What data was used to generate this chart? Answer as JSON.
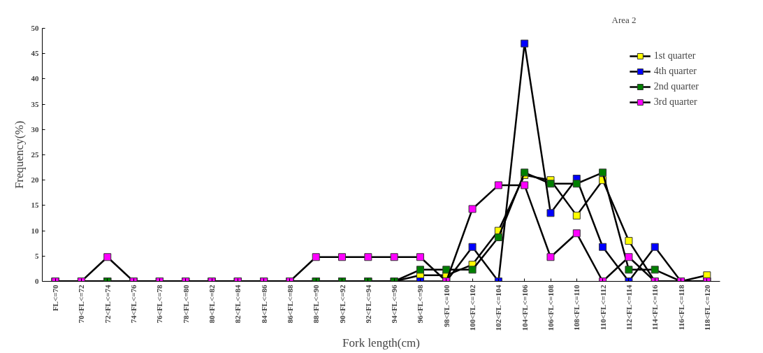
{
  "chart_data": {
    "type": "line",
    "xlabel": "Fork length(cm)",
    "ylabel": "Frequency(%)",
    "annotations": [
      "Area 2"
    ],
    "categories": [
      "FL<=70",
      "70<FL<=72",
      "72<FL<=74",
      "74<FL<=76",
      "76<FL<=78",
      "78<FL<=80",
      "80<FL<=82",
      "82<FL<=84",
      "84<FL<=86",
      "86<FL<=88",
      "88<FL<=90",
      "90<FL<=92",
      "92<FL<=94",
      "94<FL<=96",
      "96<FL<=98",
      "98<FL<=100",
      "100<FL<=102",
      "102<FL<=104",
      "104<FL<=106",
      "106<FL<=108",
      "108<FL<=110",
      "110<FL<=112",
      "112<FL<=114",
      "114<FL<=116",
      "116<FL<=118",
      "118<FL<=120"
    ],
    "series": [
      {
        "name": "1st quarter",
        "color": "#ffff00",
        "values": [
          0,
          0,
          0,
          0,
          0,
          0,
          0,
          0,
          0,
          0,
          0,
          0,
          0,
          0,
          1.2,
          1.2,
          3.3,
          10,
          21,
          20,
          13,
          20,
          8,
          0,
          0,
          1.2
        ]
      },
      {
        "name": "4th quarter",
        "color": "#0000ff",
        "values": [
          0,
          0,
          0,
          0,
          0,
          0,
          0,
          0,
          0,
          0,
          0,
          0,
          0,
          0,
          0,
          0,
          6.8,
          0,
          47,
          13.5,
          20.3,
          6.8,
          0,
          6.8,
          0,
          0
        ]
      },
      {
        "name": "2nd quarter",
        "color": "#008000",
        "values": [
          0,
          0,
          0,
          0,
          0,
          0,
          0,
          0,
          0,
          0,
          0,
          0,
          0,
          0,
          2.3,
          2.3,
          2.3,
          8.7,
          21.5,
          19.3,
          19.3,
          21.5,
          2.3,
          2.3,
          0,
          0
        ]
      },
      {
        "name": "3rd quarter",
        "color": "#ff00ff",
        "values": [
          0,
          0,
          4.8,
          0,
          0,
          0,
          0,
          0,
          0,
          0,
          4.8,
          4.8,
          4.8,
          4.8,
          4.8,
          0,
          14.3,
          19,
          19,
          4.8,
          9.5,
          0,
          4.8,
          0,
          0,
          0
        ]
      }
    ],
    "ylim": [
      0,
      50
    ],
    "yticks": [
      0,
      5,
      10,
      15,
      20,
      25,
      30,
      35,
      40,
      45,
      50
    ],
    "grid": false,
    "legend": "top right",
    "marker": "square",
    "line_style": "solid"
  }
}
